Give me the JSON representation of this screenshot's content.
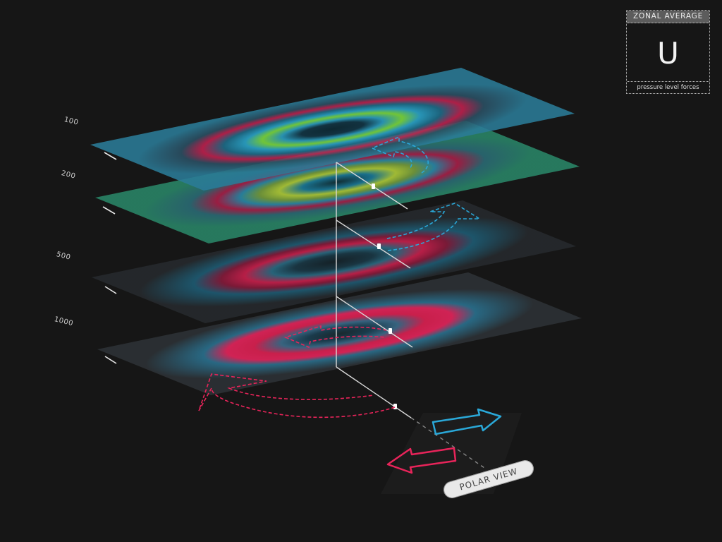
{
  "legend": {
    "title": "ZONAL AVERAGE",
    "symbol": "U",
    "caption": "pressure level forces"
  },
  "pressure_levels": [
    {
      "label": "100"
    },
    {
      "label": "200"
    },
    {
      "label": "500"
    },
    {
      "label": "1000"
    }
  ],
  "polar_view_button": {
    "label": "POLAR VIEW"
  },
  "colors": {
    "background": "#161616",
    "westward": "#e8245a",
    "eastward": "#2aa8d8",
    "jet_core": "#8fe02a"
  }
}
